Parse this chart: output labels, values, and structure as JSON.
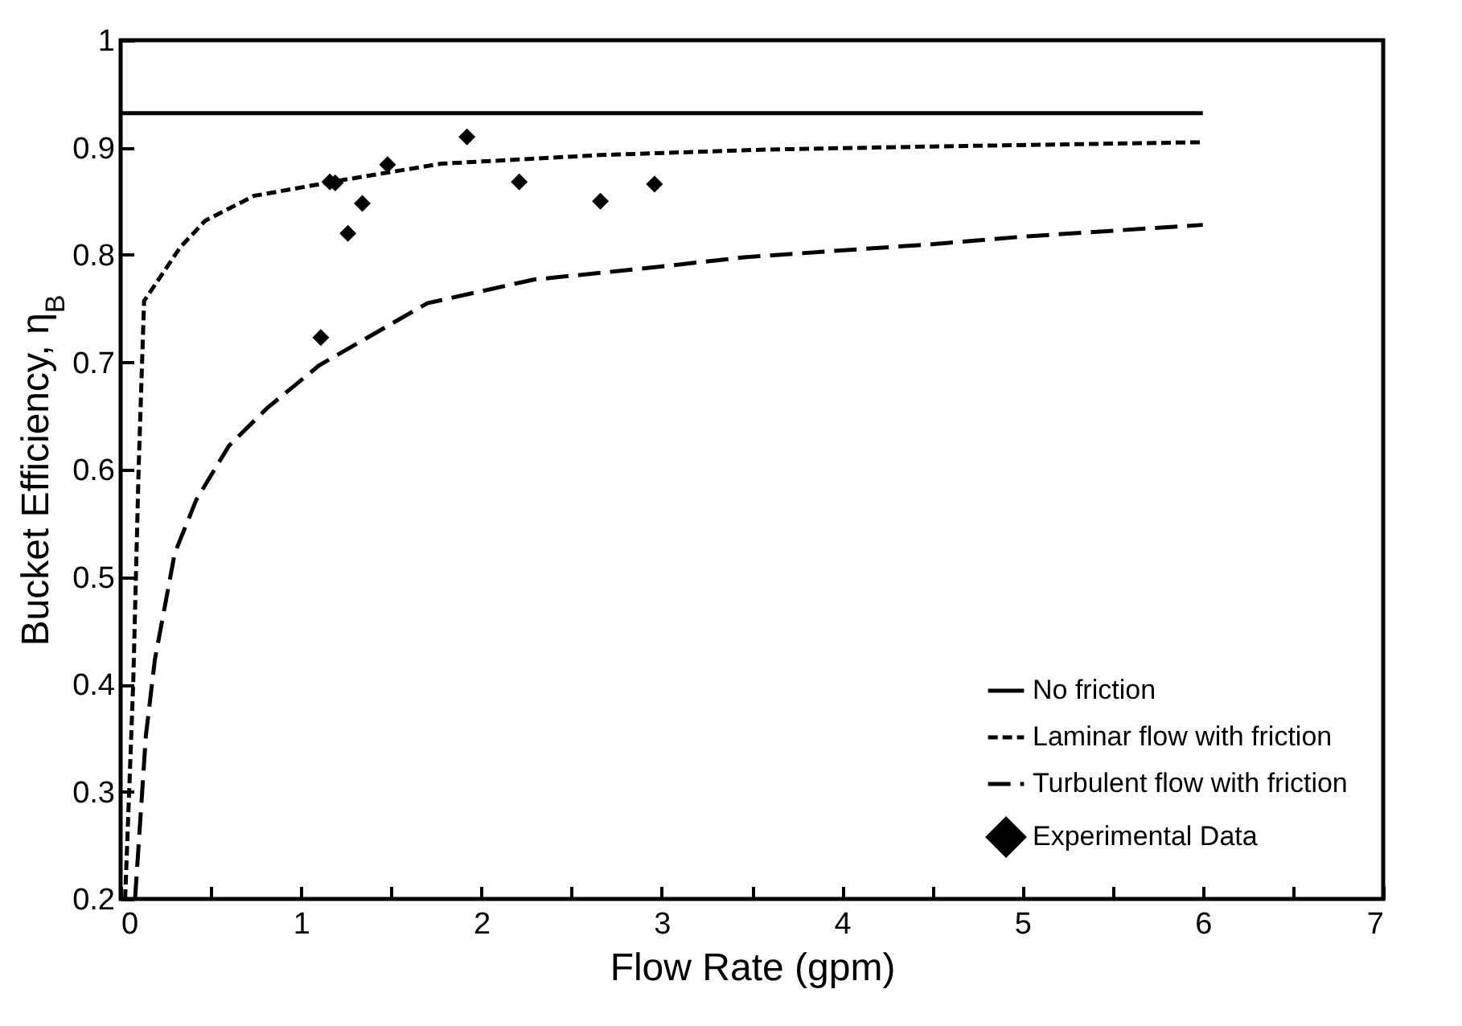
{
  "chart_data": {
    "type": "line",
    "xlabel": "Flow Rate (gpm)",
    "ylabel": "Bucket Efficiency, η$_{B}$",
    "xlim": [
      0,
      7
    ],
    "ylim": [
      0.2,
      1
    ],
    "xticks": [
      0,
      {
        "value": 0.5,
        "label": null
      },
      1,
      {
        "value": 1.5,
        "label": null
      },
      2,
      {
        "value": 2.5,
        "label": null
      },
      3,
      {
        "value": 3.5,
        "label": null
      },
      4,
      {
        "value": 4.5,
        "label": null
      },
      5,
      {
        "value": 5.5,
        "label": null
      },
      6,
      {
        "value": 6.5,
        "label": null
      },
      7
    ],
    "yticks": [
      0.2,
      0.3,
      0.4,
      0.5,
      0.6,
      0.7,
      0.8,
      0.9,
      1
    ],
    "legend": "bottom right",
    "series": [
      {
        "name": "No friction",
        "line_style": "solid",
        "color": "#000000",
        "x": [
          0,
          6
        ],
        "values": [
          0.932,
          0.932
        ]
      },
      {
        "name": "Laminar flow with friction",
        "line_style": "dotted",
        "color": "#000000",
        "x": [
          0.025,
          0.07,
          0.1,
          0.13,
          0.33,
          0.47,
          0.74,
          1.24,
          1.78,
          2.66,
          3.55,
          4.5,
          6
        ],
        "values": [
          0.2,
          0.402,
          0.602,
          0.757,
          0.807,
          0.832,
          0.855,
          0.87,
          0.885,
          0.893,
          0.898,
          0.901,
          0.905
        ]
      },
      {
        "name": "Turbulent flow with friction",
        "line_style": "dashed",
        "color": "#000000",
        "x": [
          0.08,
          0.14,
          0.19,
          0.3,
          0.42,
          0.6,
          0.81,
          1.1,
          1.7,
          2.29,
          2.88,
          3.47,
          4.5,
          5,
          6
        ],
        "values": [
          0.2,
          0.352,
          0.423,
          0.522,
          0.572,
          0.622,
          0.657,
          0.697,
          0.755,
          0.777,
          0.787,
          0.798,
          0.81,
          0.817,
          0.828
        ]
      },
      {
        "name": "Experimental Data",
        "type": "scatter",
        "marker": "diamond",
        "color": "#000000",
        "x": [
          1.11,
          1.16,
          1.19,
          1.26,
          1.34,
          1.48,
          1.92,
          2.21,
          2.66,
          2.96
        ],
        "values": [
          0.723,
          0.868,
          0.867,
          0.82,
          0.848,
          0.884,
          0.91,
          0.868,
          0.85,
          0.866
        ]
      }
    ]
  }
}
